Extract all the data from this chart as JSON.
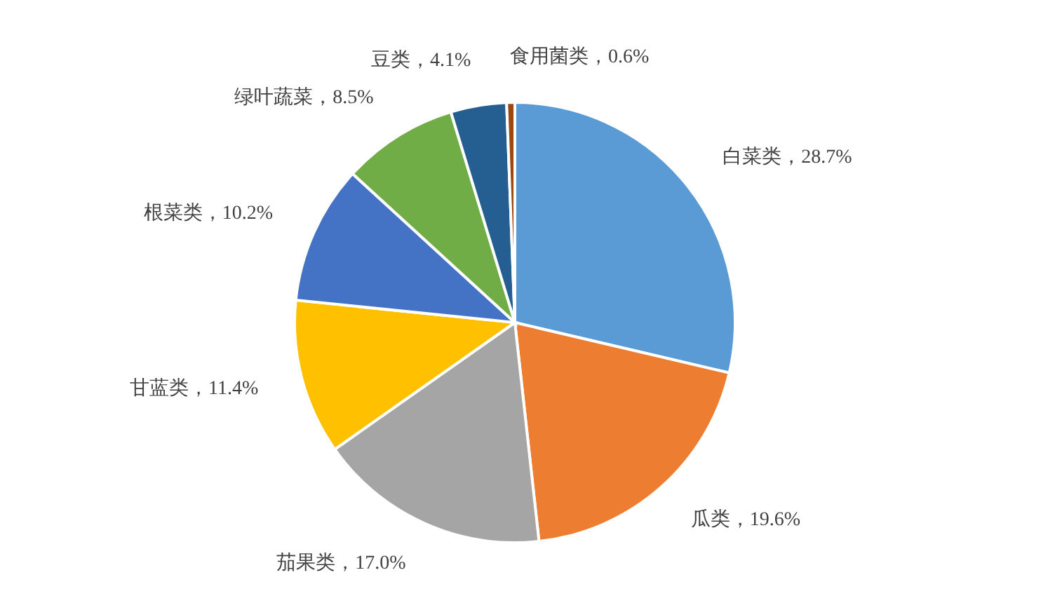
{
  "chart_data": {
    "type": "pie",
    "categories": [
      "白菜类",
      "瓜类",
      "茄果类",
      "甘蓝类",
      "根菜类",
      "绿叶蔬菜",
      "豆类",
      "食用菌类"
    ],
    "values": [
      28.7,
      19.6,
      17.0,
      11.4,
      10.2,
      8.5,
      4.1,
      0.6
    ],
    "value_labels": [
      "28.7%",
      "19.6%",
      "17.0%",
      "11.4%",
      "10.2%",
      "8.5%",
      "4.1%",
      "0.6%"
    ],
    "colors": [
      "#5b9bd5",
      "#ed7d31",
      "#a5a5a5",
      "#ffc000",
      "#4472c4",
      "#70ad47",
      "#255e91",
      "#9e480e"
    ],
    "data_labels": true
  }
}
